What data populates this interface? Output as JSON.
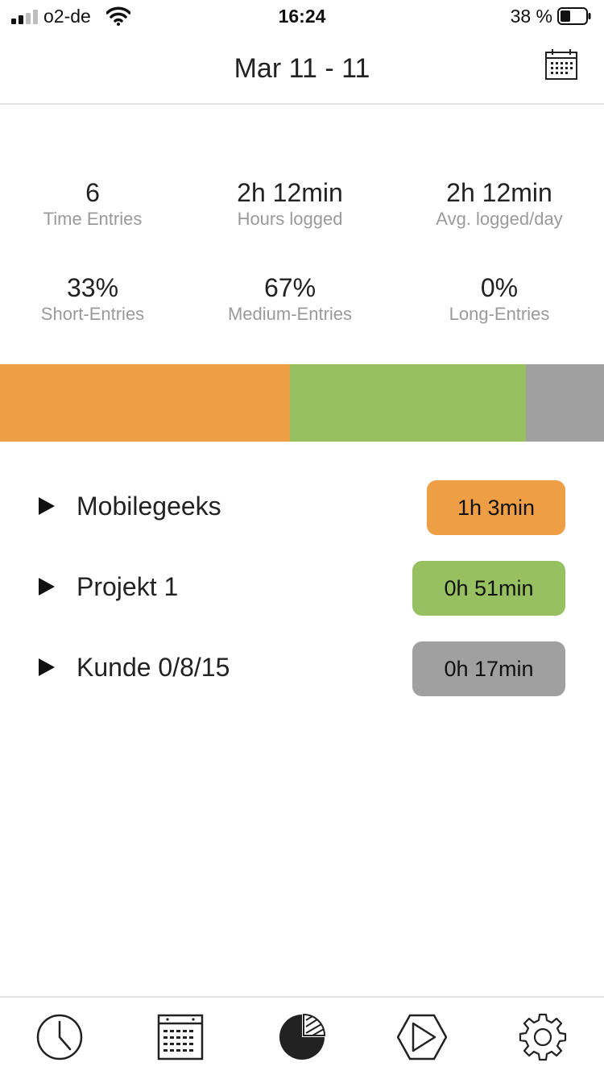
{
  "status": {
    "carrier": "o2-de",
    "time": "16:24",
    "battery": "38 %"
  },
  "header": {
    "title": "Mar 11 - 11",
    "calendar_icon": "calendar-icon"
  },
  "stats": {
    "time_entries": {
      "value": "6",
      "label": "Time Entries"
    },
    "hours_logged": {
      "value": "2h 12min",
      "label": "Hours logged"
    },
    "avg_logged": {
      "value": "2h 12min",
      "label": "Avg. logged/day"
    },
    "short_entries": {
      "value": "33%",
      "label": "Short-Entries"
    },
    "medium_entries": {
      "value": "67%",
      "label": "Medium-Entries"
    },
    "long_entries": {
      "value": "0%",
      "label": "Long-Entries"
    }
  },
  "distribution": [
    {
      "project": "Mobilegeeks",
      "share": 0.48,
      "color": "#EE9E45"
    },
    {
      "project": "Projekt 1",
      "share": 0.39,
      "color": "#97C160"
    },
    {
      "project": "Kunde 0/8/15",
      "share": 0.13,
      "color": "#A0A0A0"
    }
  ],
  "projects": [
    {
      "name": "Mobilegeeks",
      "duration": "1h 3min",
      "color": "#EE9E45"
    },
    {
      "name": "Projekt 1",
      "duration": "0h 51min",
      "color": "#97C160"
    },
    {
      "name": "Kunde 0/8/15",
      "duration": "0h 17min",
      "color": "#A0A0A0"
    }
  ],
  "tabs": [
    {
      "icon": "clock-icon"
    },
    {
      "icon": "calendar-icon"
    },
    {
      "icon": "pie-chart-icon",
      "active": true
    },
    {
      "icon": "play-icon"
    },
    {
      "icon": "gear-icon"
    }
  ]
}
